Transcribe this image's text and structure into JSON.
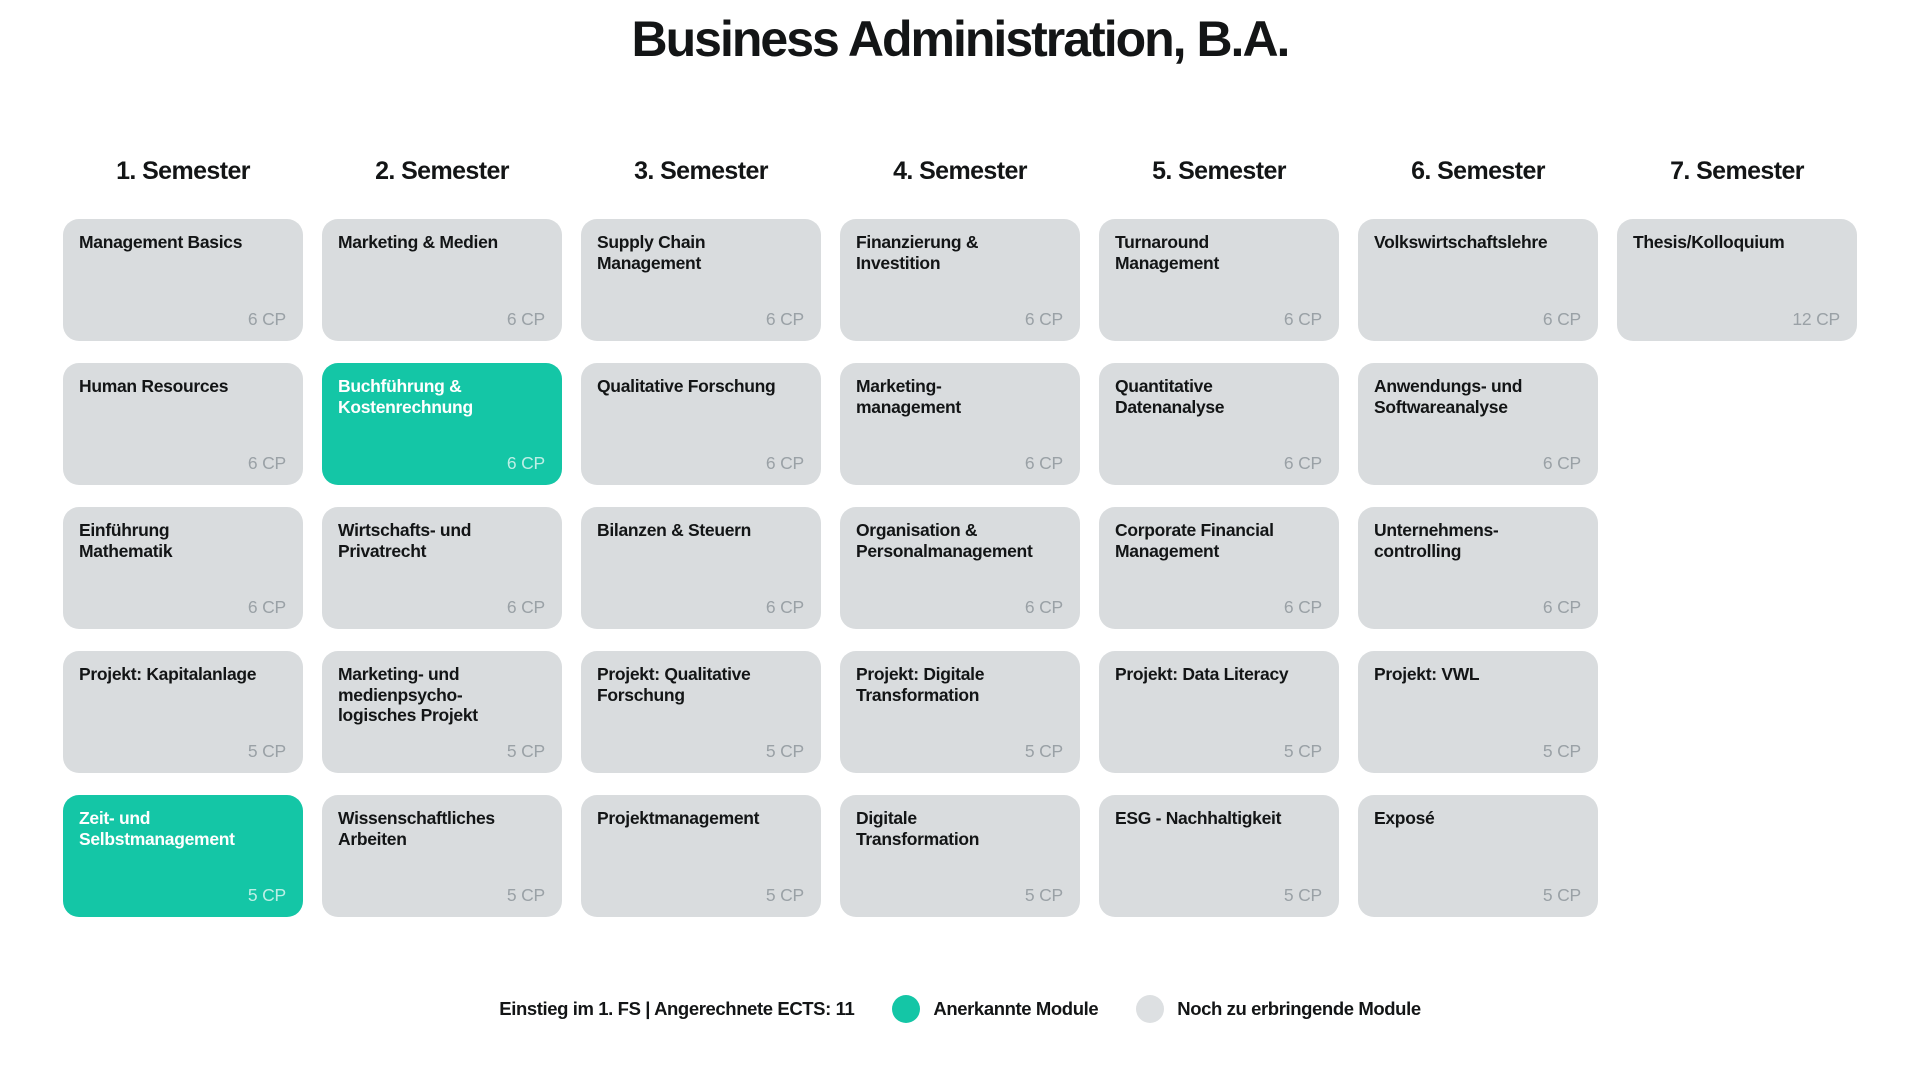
{
  "title": "Business Administration, B.A.",
  "colors": {
    "accent_teal": "#14c6a6",
    "module_gray": "#d9dcde",
    "cp_text_gray": "#9aa1a6"
  },
  "semesters": [
    {
      "label": "1. Semester",
      "modules": [
        {
          "name": "Management Basics",
          "cp": "6 CP",
          "recognized": false
        },
        {
          "name": "Human Resources",
          "cp": "6 CP",
          "recognized": false
        },
        {
          "name": "Einführung\nMathematik",
          "cp": "6 CP",
          "recognized": false
        },
        {
          "name": "Projekt: Kapitalanlage",
          "cp": "5 CP",
          "recognized": false
        },
        {
          "name": "Zeit- und\nSelbstmanagement",
          "cp": "5 CP",
          "recognized": true
        }
      ]
    },
    {
      "label": "2. Semester",
      "modules": [
        {
          "name": "Marketing & Medien",
          "cp": "6 CP",
          "recognized": false
        },
        {
          "name": "Buchführung &\nKostenrechnung",
          "cp": "6 CP",
          "recognized": true
        },
        {
          "name": "Wirtschafts- und\nPrivatrecht",
          "cp": "6 CP",
          "recognized": false
        },
        {
          "name": "Marketing- und\nmedienpsycho-\nlogisches Projekt",
          "cp": "5 CP",
          "recognized": false
        },
        {
          "name": "Wissenschaftliches\nArbeiten",
          "cp": "5 CP",
          "recognized": false
        }
      ]
    },
    {
      "label": "3. Semester",
      "modules": [
        {
          "name": "Supply Chain\nManagement",
          "cp": "6 CP",
          "recognized": false
        },
        {
          "name": "Qualitative Forschung",
          "cp": "6 CP",
          "recognized": false
        },
        {
          "name": "Bilanzen & Steuern",
          "cp": "6 CP",
          "recognized": false
        },
        {
          "name": "Projekt: Qualitative\nForschung",
          "cp": "5 CP",
          "recognized": false
        },
        {
          "name": "Projektmanagement",
          "cp": "5 CP",
          "recognized": false
        }
      ]
    },
    {
      "label": "4. Semester",
      "modules": [
        {
          "name": "Finanzierung &\nInvestition",
          "cp": "6 CP",
          "recognized": false
        },
        {
          "name": "Marketing-\nmanagement",
          "cp": "6 CP",
          "recognized": false
        },
        {
          "name": "Organisation &\nPersonalmanagement",
          "cp": "6 CP",
          "recognized": false
        },
        {
          "name": "Projekt: Digitale\nTransformation",
          "cp": "5 CP",
          "recognized": false
        },
        {
          "name": "Digitale\nTransformation",
          "cp": "5 CP",
          "recognized": false
        }
      ]
    },
    {
      "label": "5. Semester",
      "modules": [
        {
          "name": "Turnaround\nManagement",
          "cp": "6 CP",
          "recognized": false
        },
        {
          "name": "Quantitative\nDatenanalyse",
          "cp": "6 CP",
          "recognized": false
        },
        {
          "name": "Corporate Financial\nManagement",
          "cp": "6 CP",
          "recognized": false
        },
        {
          "name": "Projekt: Data Literacy",
          "cp": "5 CP",
          "recognized": false
        },
        {
          "name": "ESG - Nachhaltigkeit",
          "cp": "5 CP",
          "recognized": false
        }
      ]
    },
    {
      "label": "6. Semester",
      "modules": [
        {
          "name": "Volkswirtschaftslehre",
          "cp": "6 CP",
          "recognized": false
        },
        {
          "name": "Anwendungs- und\nSoftwareanalyse",
          "cp": "6 CP",
          "recognized": false
        },
        {
          "name": "Unternehmens-\ncontrolling",
          "cp": "6 CP",
          "recognized": false
        },
        {
          "name": "Projekt: VWL",
          "cp": "5 CP",
          "recognized": false
        },
        {
          "name": "Exposé",
          "cp": "5 CP",
          "recognized": false
        }
      ]
    },
    {
      "label": "7. Semester",
      "modules": [
        {
          "name": "Thesis/Kolloquium",
          "cp": "12 CP",
          "recognized": false
        }
      ]
    }
  ],
  "legend": {
    "entry_note": "Einstieg im 1. FS | Angerechnete ECTS: 11",
    "recognized_label": "Anerkannte Module",
    "pending_label": "Noch zu erbringende Module"
  }
}
